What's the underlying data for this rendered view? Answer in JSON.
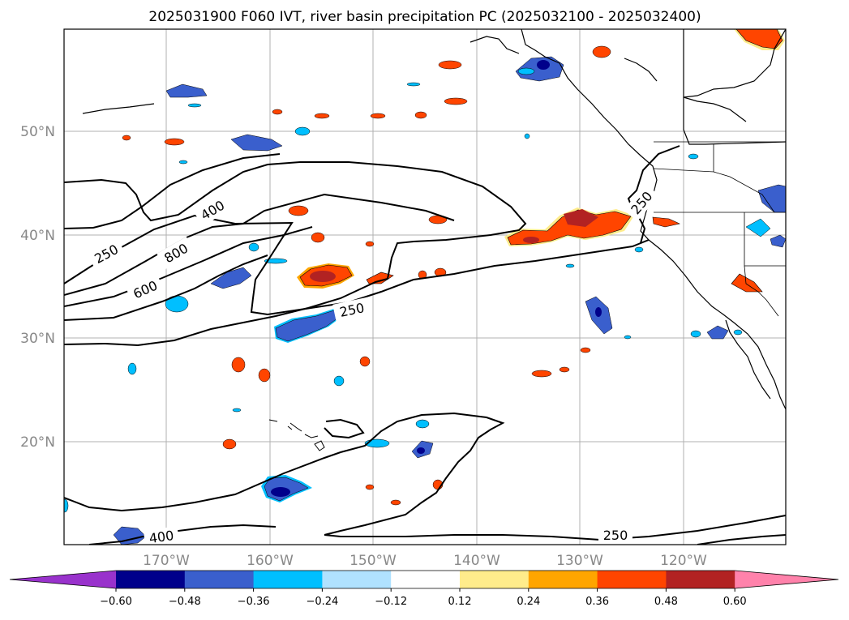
{
  "title": "2025031900 F060 IVT, river basin precipitation PC (2025032100 - 2025032400)",
  "lat_labels": [
    "50°N",
    "40°N",
    "30°N",
    "20°N"
  ],
  "lon_labels": [
    "170°W",
    "160°W",
    "150°W",
    "140°W",
    "130°W",
    "120°W"
  ],
  "contour_labels": [
    "250",
    "400",
    "800",
    "600",
    "250",
    "250",
    "250",
    "400"
  ],
  "colorbar": {
    "tick_labels": [
      "−0.60",
      "−0.48",
      "−0.36",
      "−0.24",
      "−0.12",
      "0.12",
      "0.24",
      "0.36",
      "0.48",
      "0.60"
    ],
    "colors": [
      "#9932cc",
      "#00008b",
      "#3a5fcd",
      "#00bfff",
      "#b0e2ff",
      "#ffffff",
      "#ffec8b",
      "#ffa500",
      "#ff4500",
      "#b22222",
      "#ff82ab"
    ]
  }
}
